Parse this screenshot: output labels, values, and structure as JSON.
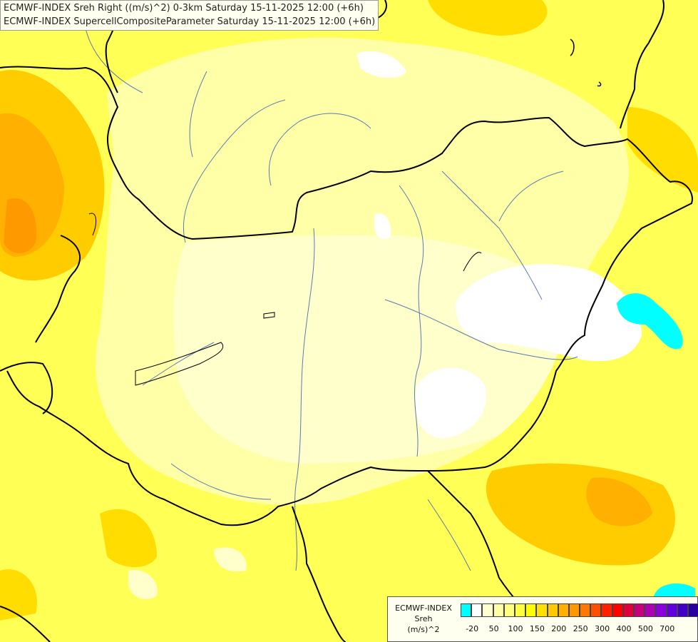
{
  "title_lines": [
    "ECMWF-INDEX Sreh Right ((m/s)^2) 0-3km Saturday 15-11-2025 12:00 (+6h)",
    "ECMWF-INDEX SupercellCompositeParameter Saturday 15-11-2025 12:00 (+6h)"
  ],
  "legend": {
    "line1": "ECMWF-INDEX",
    "line2": "Sreh",
    "line3": "(m/s)^2",
    "colors": [
      "#00ffff",
      "#ffffff",
      "#ffffd0",
      "#ffffa8",
      "#ffff80",
      "#ffff40",
      "#ffff00",
      "#ffe000",
      "#ffc800",
      "#ffb000",
      "#ff9800",
      "#ff7800",
      "#ff5000",
      "#ff2000",
      "#ff0000",
      "#e0003c",
      "#c8007c",
      "#b000b4",
      "#8c00dc",
      "#6400e0",
      "#4000c8",
      "#2800a0",
      "#000080"
    ],
    "ticks": [
      "-20",
      "50",
      "100",
      "150",
      "200",
      "250",
      "300",
      "400",
      "500",
      "700"
    ]
  }
}
